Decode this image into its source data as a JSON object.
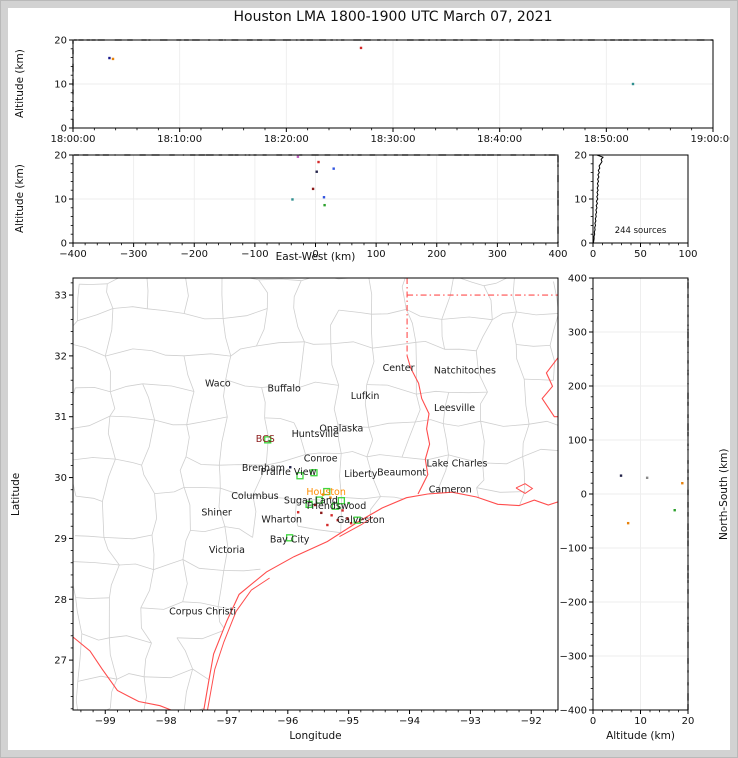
{
  "title": "Houston LMA 1800-1900 UTC March 07, 2021",
  "axis_labels": {
    "altitude_km": "Altitude (km)",
    "east_west": "East-West (km)",
    "longitude": "Longitude",
    "latitude": "Latitude",
    "north_south": "North-South (km)"
  },
  "colors": {
    "frame": "#000000",
    "grid": "#ededed",
    "county": "#cfcfcf",
    "state_border": "#ff4d4d",
    "station": "#3ed63e",
    "city_label": "#1a1a1a",
    "houston_label": "#ff8c00",
    "bcs_label": "#8b1a1a",
    "noise": "#000000"
  },
  "chart_data": {
    "type": "scatter",
    "panels": {
      "time_height": {
        "ylabel": "Altitude (km)",
        "xlim_s": [
          0,
          3600
        ],
        "xtick_values_s": [
          0,
          600,
          1200,
          1800,
          2400,
          3000,
          3600
        ],
        "xtick_labels": [
          "18:00:00",
          "18:10:00",
          "18:20:00",
          "18:30:00",
          "18:40:00",
          "18:50:00",
          "19:00:00"
        ],
        "ylim": [
          0,
          20
        ],
        "ytick_values": [
          0,
          10,
          20
        ],
        "ytick_labels": [
          "0",
          "10",
          "20"
        ],
        "ceiling_noise_at_20km": true,
        "points": [
          {
            "t_s": 205,
            "alt": 15.9,
            "color": "#1c1c8f"
          },
          {
            "t_s": 225,
            "alt": 15.7,
            "color": "#e8820c"
          },
          {
            "t_s": 1620,
            "alt": 18.2,
            "color": "#d42a2a"
          },
          {
            "t_s": 3150,
            "alt": 10.0,
            "color": "#2f8f8f"
          }
        ]
      },
      "ew_height": {
        "xlabel": "East-West (km)",
        "ylabel": "Altitude (km)",
        "xlim": [
          -400,
          400
        ],
        "xtick_values": [
          -400,
          -300,
          -200,
          -100,
          0,
          100,
          200,
          300,
          400
        ],
        "xtick_labels": [
          "−400",
          "−300",
          "−200",
          "−100",
          "0",
          "100",
          "200",
          "300",
          "400"
        ],
        "ylim": [
          0,
          20
        ],
        "ytick_values": [
          0,
          10,
          20
        ],
        "ytick_labels": [
          "0",
          "10",
          "20"
        ],
        "ceiling_noise_at_20km": true,
        "points": [
          {
            "ew": -29,
            "alt": 19.6,
            "color": "#c060c0"
          },
          {
            "ew": 5,
            "alt": 18.4,
            "color": "#d42a2a"
          },
          {
            "ew": 2,
            "alt": 16.2,
            "color": "#24244a"
          },
          {
            "ew": 30,
            "alt": 16.9,
            "color": "#3355e0"
          },
          {
            "ew": -4,
            "alt": 12.3,
            "color": "#8b1a1a"
          },
          {
            "ew": 14,
            "alt": 10.4,
            "color": "#3355e0"
          },
          {
            "ew": -38,
            "alt": 9.9,
            "color": "#2f8f8f"
          },
          {
            "ew": 15,
            "alt": 8.6,
            "color": "#2ca02c"
          }
        ]
      },
      "altitude_histogram": {
        "annotation": "244 sources",
        "xlim": [
          0,
          100
        ],
        "xtick_values": [
          0,
          50,
          100
        ],
        "xtick_labels": [
          "0",
          "50",
          "100"
        ],
        "ylim": [
          0,
          20
        ],
        "ytick_values": [
          0,
          10,
          20
        ],
        "ytick_labels": [
          "0",
          "10",
          "20"
        ],
        "profile_step_km": 0.5,
        "profile_counts": [
          0.3,
          0.8,
          1.2,
          1.0,
          1.8,
          1.4,
          2.2,
          1.8,
          2.6,
          2.0,
          3.0,
          2.4,
          3.4,
          2.8,
          3.8,
          3.0,
          4.2,
          3.4,
          4.6,
          3.6,
          5.0,
          4.0,
          5.2,
          4.2,
          5.4,
          4.4,
          5.6,
          4.6,
          5.8,
          4.8,
          6.2,
          5.2,
          6.6,
          5.6,
          7.2,
          6.4,
          8.0,
          9.5,
          8.5,
          10.5,
          4.0
        ]
      },
      "plan_map": {
        "xlabel": "Longitude",
        "ylabel": "Latitude",
        "xlim": [
          -99.53,
          -91.56
        ],
        "xtick_values": [
          -99,
          -98,
          -97,
          -96,
          -95,
          -94,
          -93,
          -92
        ],
        "xtick_labels": [
          "−99",
          "−98",
          "−97",
          "−96",
          "−95",
          "−94",
          "−93",
          "−92"
        ],
        "ylim": [
          26.18,
          33.28
        ],
        "ytick_values": [
          27,
          28,
          29,
          30,
          31,
          32,
          33
        ],
        "ytick_labels": [
          "27",
          "28",
          "29",
          "30",
          "31",
          "32",
          "33"
        ],
        "cities": [
          {
            "name": "Waco",
            "lon": -97.15,
            "lat": 31.55
          },
          {
            "name": "Buffalo",
            "lon": -96.06,
            "lat": 31.46
          },
          {
            "name": "Lufkin",
            "lon": -94.73,
            "lat": 31.34
          },
          {
            "name": "Center",
            "lon": -94.18,
            "lat": 31.8
          },
          {
            "name": "Natchitoches",
            "lon": -93.09,
            "lat": 31.76
          },
          {
            "name": "Leesville",
            "lon": -93.26,
            "lat": 31.14
          },
          {
            "name": "Onalaska",
            "lon": -95.12,
            "lat": 30.81
          },
          {
            "name": "Huntsville",
            "lon": -95.55,
            "lat": 30.72
          },
          {
            "name": "Conroe",
            "lon": -95.46,
            "lat": 30.31
          },
          {
            "name": "Brenham",
            "lon": -96.4,
            "lat": 30.16
          },
          {
            "name": "Prairie View",
            "lon": -95.99,
            "lat": 30.09
          },
          {
            "name": "Liberty",
            "lon": -94.8,
            "lat": 30.06
          },
          {
            "name": "Beaumont",
            "lon": -94.13,
            "lat": 30.08
          },
          {
            "name": "Lake Charles",
            "lon": -93.22,
            "lat": 30.23
          },
          {
            "name": "Cameron",
            "lon": -93.33,
            "lat": 29.8
          },
          {
            "name": "Columbus",
            "lon": -96.54,
            "lat": 29.7
          },
          {
            "name": "Houston",
            "lon": -95.37,
            "lat": 29.76,
            "color": "#ff8c00"
          },
          {
            "name": "Sugar Land",
            "lon": -95.62,
            "lat": 29.62
          },
          {
            "name": "Friendswood",
            "lon": -95.2,
            "lat": 29.53
          },
          {
            "name": "Shiner",
            "lon": -97.17,
            "lat": 29.43
          },
          {
            "name": "Wharton",
            "lon": -96.1,
            "lat": 29.31
          },
          {
            "name": "Galveston",
            "lon": -94.8,
            "lat": 29.3
          },
          {
            "name": "Bay City",
            "lon": -95.97,
            "lat": 28.98
          },
          {
            "name": "Victoria",
            "lon": -97.0,
            "lat": 28.81
          },
          {
            "name": "Corpus Christi",
            "lon": -97.4,
            "lat": 27.8
          },
          {
            "name": "BCS",
            "lon": -96.37,
            "lat": 30.63,
            "color": "#8b1a1a"
          }
        ],
        "stations": [
          {
            "lon": -96.33,
            "lat": 30.62
          },
          {
            "lon": -95.8,
            "lat": 30.03
          },
          {
            "lon": -95.57,
            "lat": 30.08
          },
          {
            "lon": -95.36,
            "lat": 29.77
          },
          {
            "lon": -95.65,
            "lat": 29.56
          },
          {
            "lon": -95.48,
            "lat": 29.63
          },
          {
            "lon": -95.22,
            "lat": 29.53
          },
          {
            "lon": -94.86,
            "lat": 29.3
          },
          {
            "lon": -95.97,
            "lat": 29.01
          },
          {
            "lon": -95.12,
            "lat": 29.62
          }
        ],
        "sources": [
          {
            "lon": -95.28,
            "lat": 29.38,
            "color": "#d42a2a"
          },
          {
            "lon": -95.18,
            "lat": 29.3,
            "color": "#d42a2a"
          },
          {
            "lon": -95.1,
            "lat": 29.46,
            "color": "#d42a2a"
          },
          {
            "lon": -95.02,
            "lat": 29.33,
            "color": "#d42a2a"
          },
          {
            "lon": -95.35,
            "lat": 29.22,
            "color": "#d42a2a"
          },
          {
            "lon": -94.96,
            "lat": 29.25,
            "color": "#d42a2a"
          },
          {
            "lon": -95.45,
            "lat": 29.42,
            "color": "#8b1a1a"
          },
          {
            "lon": -95.83,
            "lat": 29.43,
            "color": "#d42a2a"
          },
          {
            "lon": -95.42,
            "lat": 29.72,
            "color": "#e8820c"
          },
          {
            "lon": -95.3,
            "lat": 29.67,
            "color": "#e8820c"
          },
          {
            "lon": -95.0,
            "lat": 29.58,
            "color": "#2ca02c"
          },
          {
            "lon": -95.15,
            "lat": 29.5,
            "color": "#2ca02c"
          },
          {
            "lon": -96.3,
            "lat": 30.6,
            "color": "#2ca02c"
          },
          {
            "lon": -95.96,
            "lat": 30.17,
            "color": "#24244a"
          },
          {
            "lon": -95.55,
            "lat": 29.55,
            "color": "#8b1a1a"
          }
        ]
      },
      "ns_height": {
        "xlabel": "Altitude (km)",
        "ylabel": "North-South (km)",
        "xlim": [
          0,
          20
        ],
        "xtick_values": [
          0,
          10,
          20
        ],
        "xtick_labels": [
          "0",
          "10",
          "20"
        ],
        "ylim": [
          -400,
          400
        ],
        "ytick_values": [
          400,
          300,
          200,
          100,
          0,
          -100,
          -200,
          -300,
          -400
        ],
        "ytick_labels": [
          "400",
          "300",
          "200",
          "100",
          "0",
          "−100",
          "−200",
          "−300",
          "−400"
        ],
        "ceiling_noise_at_20km": true,
        "points": [
          {
            "alt": 5.9,
            "ns": 34,
            "color": "#24244a"
          },
          {
            "alt": 11.4,
            "ns": 30,
            "color": "#8a8a8a"
          },
          {
            "alt": 18.8,
            "ns": 20,
            "color": "#e8820c"
          },
          {
            "alt": 7.4,
            "ns": -54,
            "color": "#e8820c"
          },
          {
            "alt": 17.2,
            "ns": -30,
            "color": "#2ca02c"
          }
        ]
      }
    }
  }
}
